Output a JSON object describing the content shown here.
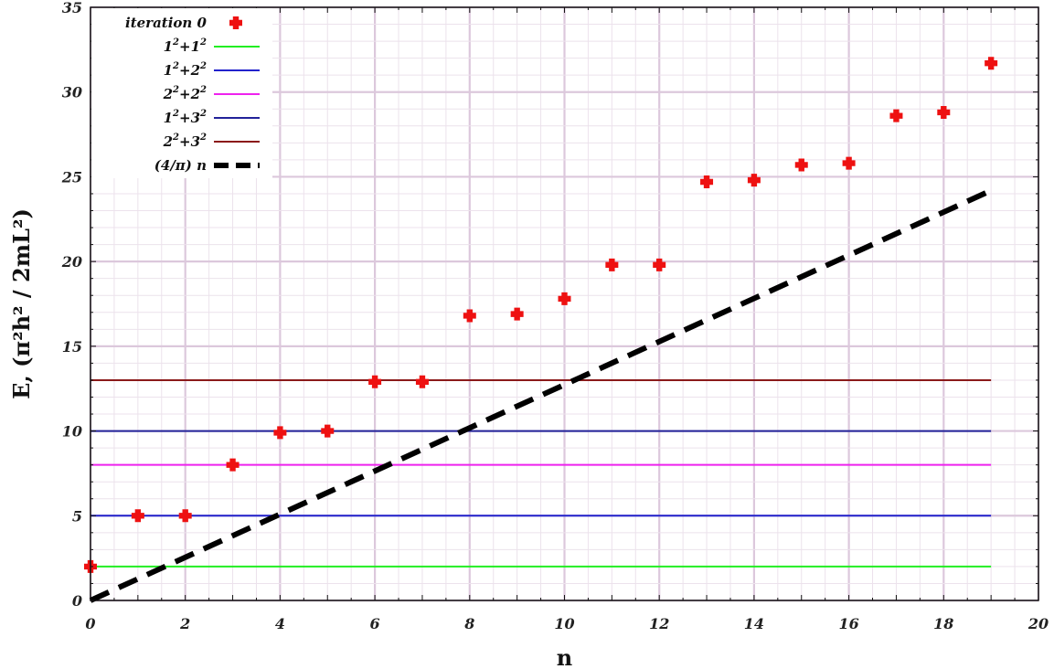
{
  "chart_data": {
    "type": "line",
    "title": "",
    "xlabel": "n",
    "ylabel": "E, (π²h² / 2mL²)",
    "xlim": [
      0,
      20
    ],
    "ylim": [
      0,
      35
    ],
    "x_ticks": [
      0,
      2,
      4,
      6,
      8,
      10,
      12,
      14,
      16,
      18,
      20
    ],
    "y_ticks": [
      0,
      5,
      10,
      15,
      20,
      25,
      30,
      35
    ],
    "grid": true,
    "legend_position": "top-left",
    "colors": {
      "grid_major": "#dcc8dc",
      "grid_minor": "#ece2ec",
      "points": "#ee1111"
    },
    "series": [
      {
        "name": "iteration 0",
        "kind": "scatter",
        "marker": "plus",
        "color": "#ee1111",
        "x": [
          0,
          1,
          2,
          3,
          4,
          5,
          6,
          7,
          8,
          9,
          10,
          11,
          12,
          13,
          14,
          15,
          16,
          17,
          18,
          19
        ],
        "y": [
          2,
          5,
          5,
          8,
          9.9,
          10,
          12.9,
          12.9,
          16.8,
          16.9,
          17.8,
          19.8,
          19.8,
          24.7,
          24.8,
          25.7,
          25.8,
          28.6,
          28.8,
          31.7
        ]
      },
      {
        "name": "1²+1²",
        "name_parts": [
          "1",
          "2",
          "+1",
          "2"
        ],
        "kind": "hline",
        "y": 2,
        "x_range": [
          0,
          19
        ],
        "color": "#22ee22",
        "dash": "solid"
      },
      {
        "name": "1²+2²",
        "name_parts": [
          "1",
          "2",
          "+2",
          "2"
        ],
        "kind": "hline",
        "y": 5,
        "x_range": [
          0,
          19
        ],
        "color": "#2222cc",
        "dash": "solid"
      },
      {
        "name": "2²+2²",
        "name_parts": [
          "2",
          "2",
          "+2",
          "2"
        ],
        "kind": "hline",
        "y": 8,
        "x_range": [
          0,
          19
        ],
        "color": "#ee22ee",
        "dash": "solid"
      },
      {
        "name": "1²+3²",
        "name_parts": [
          "1",
          "2",
          "+3",
          "2"
        ],
        "kind": "hline",
        "y": 10,
        "x_range": [
          0,
          19
        ],
        "color": "#222299",
        "dash": "solid"
      },
      {
        "name": "2²+3²",
        "name_parts": [
          "2",
          "2",
          "+3",
          "2"
        ],
        "kind": "hline",
        "y": 13,
        "x_range": [
          0,
          19
        ],
        "color": "#8b1a1a",
        "dash": "solid"
      },
      {
        "name": "(4/π) n",
        "kind": "line",
        "x": [
          0,
          19
        ],
        "y": [
          0,
          24.19
        ],
        "color": "#000000",
        "dash": "dashed"
      }
    ]
  }
}
